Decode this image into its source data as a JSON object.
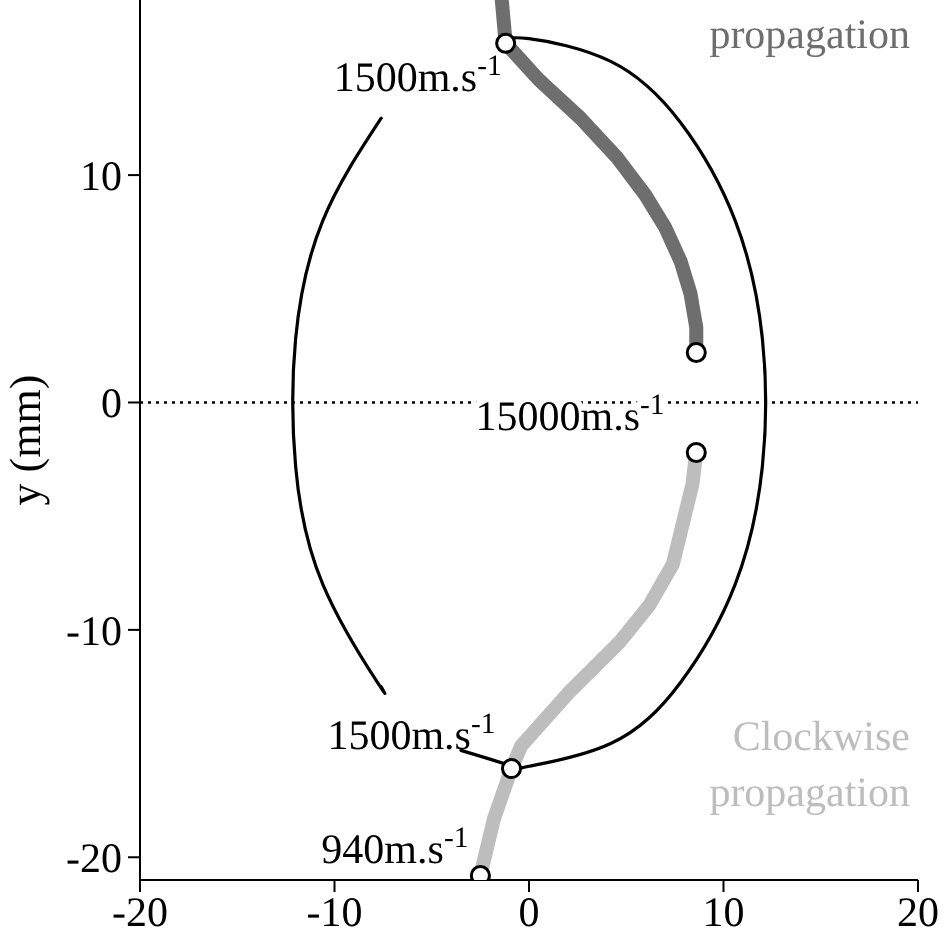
{
  "chart_data": {
    "type": "line",
    "ylabel": "y (mm)",
    "xlim": [
      -20,
      20
    ],
    "ylim": [
      -21,
      17.7
    ],
    "xticks": [
      -20,
      -10,
      0,
      10,
      20
    ],
    "yticks": [
      -20,
      -10,
      0,
      10
    ],
    "series": [
      {
        "color": "#000000",
        "marker": "none",
        "x": [
          -1.2,
          0,
          4.2,
          7.8,
          10.6,
          12.0,
          12.0,
          10.6,
          7.8,
          4.2,
          0,
          -0.9,
          -3.5,
          null,
          -7.6,
          -7.8,
          -10.6,
          -12.0,
          -12.0,
          -10.6,
          -7.6
        ],
        "values": [
          15.9,
          16,
          15.0,
          12.3,
          8.0,
          2.8,
          -2.8,
          -8.0,
          -12.3,
          -15.0,
          -16,
          -16.0,
          -15.3,
          null,
          -12.5,
          -12.3,
          -8.0,
          -2.8,
          2.8,
          8.0,
          12.5
        ]
      },
      {
        "color": "#6e6e6e",
        "marker": "none",
        "x": [
          -1.4,
          -1.2,
          0.5,
          2.65,
          4.5,
          6.0,
          7.0,
          7.8,
          8.3,
          8.6,
          8.6
        ],
        "values": [
          17.7,
          15.8,
          14.2,
          12.5,
          10.8,
          9.1,
          7.7,
          6.2,
          4.8,
          3.3,
          2.2
        ]
      },
      {
        "color": "#bdbdbd",
        "marker": "none",
        "x": [
          8.6,
          8.4,
          7.4,
          6.2,
          4.7,
          2.0,
          -0.4,
          -0.9,
          -1.8,
          -2.5
        ],
        "values": [
          -2.2,
          -3.6,
          -7.1,
          -8.9,
          -10.5,
          -12.8,
          -15.1,
          -16.1,
          -18.3,
          -20.8
        ]
      },
      {
        "type": "scatter",
        "color": "#ffffff",
        "marker": "circle",
        "x": [
          -1.2,
          8.6,
          8.6,
          -0.9,
          -2.5
        ],
        "values": [
          15.8,
          2.2,
          -2.2,
          -16.1,
          -20.8
        ]
      }
    ],
    "ref_lines": [
      {
        "axis": "y",
        "value": 0,
        "line_style": "dotted",
        "color": "#000000"
      }
    ],
    "annotations": [
      {
        "text": "1500m.s$^{-1}$",
        "x": -1.2,
        "y": 15.8
      },
      "15000m.s$^{-1}$",
      {
        "text": "1500m.s$^{-1}$",
        "x": -0.9,
        "y": -16.1
      },
      {
        "text": "940m.s$^{-1}$",
        "x": -2.5,
        "y": -20.8
      },
      "propagation",
      "Clockwise propagation"
    ]
  }
}
